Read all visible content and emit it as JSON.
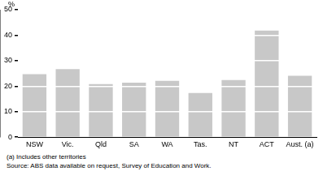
{
  "chart_data": {
    "type": "bar",
    "y_label": "%",
    "categories": [
      "NSW",
      "Vic.",
      "Qld",
      "SA",
      "WA",
      "Tas.",
      "NT",
      "ACT",
      "Aust. (a)"
    ],
    "values": [
      24.7,
      26.7,
      20.8,
      21.4,
      22.1,
      17.3,
      22.4,
      41.8,
      24.1
    ],
    "color": "#c8c8c8",
    "ylim": [
      0,
      50
    ],
    "yticks": [
      0,
      10,
      20,
      30,
      40,
      50
    ],
    "grid": true,
    "footnotes": [
      "(a) Includes other territories",
      "Source: ABS data available on request, Survey of Education and Work."
    ]
  }
}
